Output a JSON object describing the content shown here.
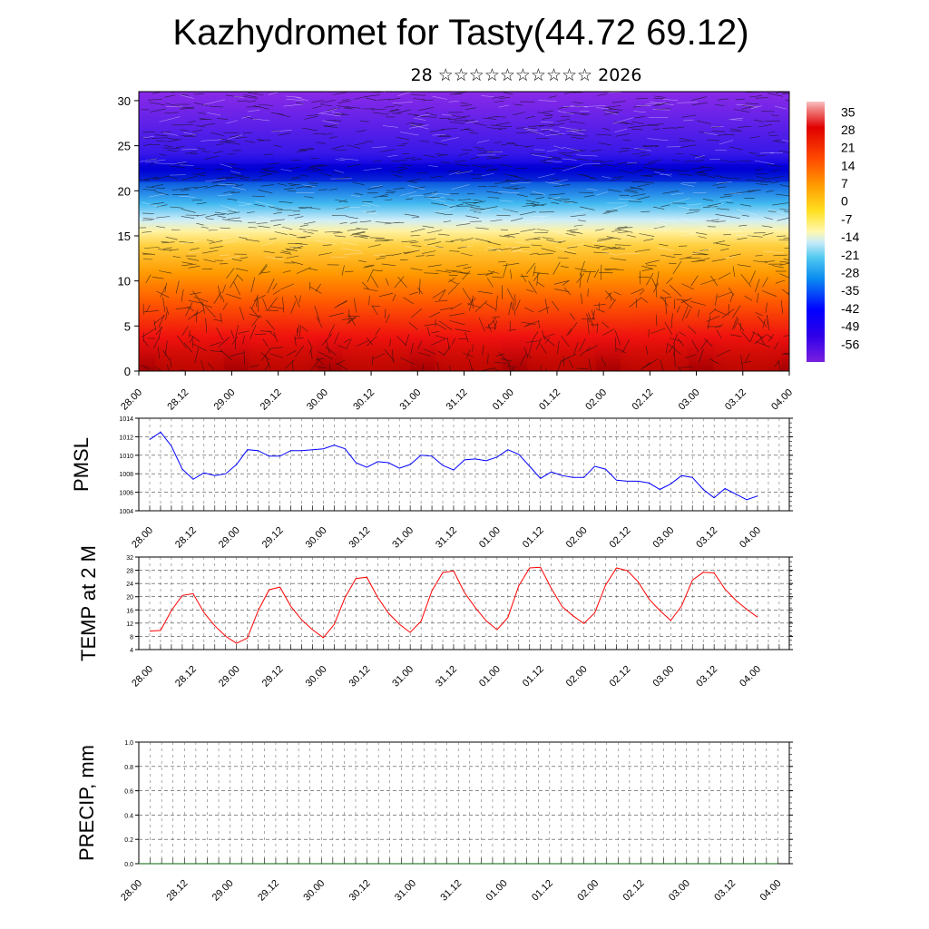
{
  "page": {
    "title": "Kazhydromet for Tasty(44.72 69.12)",
    "subtitle": "28 ☆☆☆☆☆☆☆☆☆☆ 2026"
  },
  "chart_data": [
    {
      "type": "heatmap",
      "name": "vertical-section",
      "yticks": [
        0,
        5,
        10,
        15,
        20,
        25,
        30
      ],
      "ylim": [
        0,
        31
      ],
      "xticks": [
        "28.00",
        "28.12",
        "29.00",
        "29.12",
        "30.00",
        "30.12",
        "31.00",
        "31.12",
        "01.00",
        "01.12",
        "02.00",
        "02.12",
        "03.00",
        "03.12",
        "04.00"
      ],
      "colorbar": {
        "labels": [
          "35",
          "28",
          "21",
          "14",
          "7",
          "0",
          "-7",
          "-14",
          "-21",
          "-28",
          "-35",
          "-42",
          "-49",
          "-56"
        ],
        "range": [
          -63,
          39
        ]
      },
      "overlay": "wind-streamlines"
    },
    {
      "type": "line",
      "ylabel": "PMSL",
      "ylim": [
        1004,
        1014
      ],
      "yticks": [
        1004,
        1006,
        1008,
        1010,
        1012,
        1014
      ],
      "xticks": [
        "28.00",
        "28.12",
        "29.00",
        "29.12",
        "30.00",
        "30.12",
        "31.00",
        "31.12",
        "01.00",
        "01.12",
        "02.00",
        "02.12",
        "03.00",
        "03.12",
        "04.00"
      ],
      "color": "#0000ff",
      "values": [
        1011.7,
        1012.5,
        1011.0,
        1008.5,
        1007.4,
        1008.1,
        1007.8,
        1008.0,
        1009.0,
        1010.6,
        1010.5,
        1009.9,
        1009.9,
        1010.5,
        1010.5,
        1010.6,
        1010.7,
        1011.1,
        1010.7,
        1009.2,
        1008.7,
        1009.3,
        1009.2,
        1008.6,
        1009.0,
        1010.0,
        1009.9,
        1008.9,
        1008.4,
        1009.5,
        1009.6,
        1009.4,
        1009.8,
        1010.6,
        1010.1,
        1008.8,
        1007.5,
        1008.2,
        1007.8,
        1007.6,
        1007.6,
        1008.8,
        1008.5,
        1007.3,
        1007.2,
        1007.2,
        1007.0,
        1006.3,
        1006.9,
        1007.8,
        1007.6,
        1006.3,
        1005.4,
        1006.4,
        1005.8,
        1005.2,
        1005.6
      ]
    },
    {
      "type": "line",
      "ylabel": "TEMP at 2 M",
      "ylim": [
        4,
        32
      ],
      "yticks": [
        4,
        8,
        12,
        16,
        20,
        24,
        28,
        32
      ],
      "xticks": [
        "28.00",
        "28.12",
        "29.00",
        "29.12",
        "30.00",
        "30.12",
        "31.00",
        "31.12",
        "01.00",
        "01.12",
        "02.00",
        "02.12",
        "03.00",
        "03.12",
        "04.00"
      ],
      "color": "#ff0000",
      "values": [
        9.6,
        9.8,
        15.8,
        20.4,
        20.9,
        15.2,
        11.2,
        8.0,
        5.9,
        7.5,
        15.8,
        22.1,
        22.9,
        17.1,
        13.0,
        10.0,
        7.6,
        11.6,
        19.8,
        25.5,
        25.9,
        19.8,
        15.0,
        11.7,
        9.2,
        12.6,
        21.8,
        27.3,
        27.8,
        21.2,
        16.7,
        12.7,
        10.0,
        13.7,
        23.3,
        28.7,
        28.9,
        22.5,
        17.0,
        14.2,
        11.9,
        15.1,
        23.5,
        28.7,
        27.9,
        24.5,
        19.3,
        15.8,
        12.8,
        17.2,
        25.0,
        27.4,
        27.2,
        22.3,
        18.9,
        16.2,
        13.8
      ]
    },
    {
      "type": "line",
      "ylabel": "PRECIP, mm",
      "ylim": [
        0,
        1
      ],
      "yticks": [
        "0.0",
        "0.2",
        "0.4",
        "0.6",
        "0.8",
        "1.0"
      ],
      "xticks": [
        "28.00",
        "28.12",
        "29.00",
        "29.12",
        "30.00",
        "30.12",
        "31.00",
        "31.12",
        "01.00",
        "01.12",
        "02.00",
        "02.12",
        "03.00",
        "03.12",
        "04.00"
      ],
      "color": "#006400",
      "values": [
        0,
        0,
        0,
        0,
        0,
        0,
        0,
        0,
        0,
        0,
        0,
        0,
        0,
        0,
        0,
        0,
        0,
        0,
        0,
        0,
        0,
        0,
        0,
        0,
        0,
        0,
        0,
        0,
        0,
        0,
        0,
        0,
        0,
        0,
        0,
        0,
        0,
        0,
        0,
        0,
        0,
        0,
        0,
        0,
        0,
        0,
        0,
        0,
        0,
        0,
        0,
        0,
        0,
        0,
        0,
        0,
        0
      ]
    }
  ]
}
